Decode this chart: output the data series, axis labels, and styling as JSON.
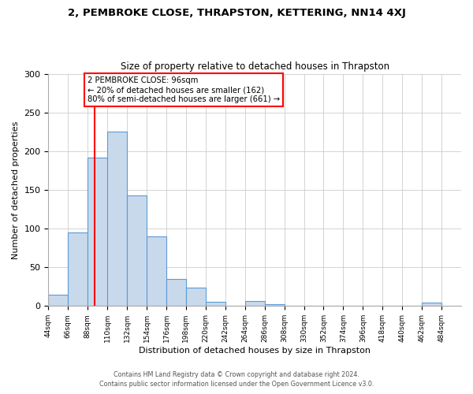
{
  "title": "2, PEMBROKE CLOSE, THRAPSTON, KETTERING, NN14 4XJ",
  "subtitle": "Size of property relative to detached houses in Thrapston",
  "xlabel": "Distribution of detached houses by size in Thrapston",
  "ylabel": "Number of detached properties",
  "bin_edges": [
    44,
    66,
    88,
    110,
    132,
    154,
    176,
    198,
    220,
    242,
    264,
    286,
    308,
    330,
    352,
    374,
    396,
    418,
    440,
    462,
    484
  ],
  "bar_heights": [
    15,
    95,
    192,
    225,
    143,
    90,
    35,
    24,
    5,
    0,
    6,
    2,
    0,
    0,
    0,
    0,
    0,
    0,
    0,
    4
  ],
  "bar_facecolor": "#c9d9ec",
  "bar_edgecolor": "#5b9bd5",
  "vline_x": 96,
  "vline_color": "red",
  "annotation_line1": "2 PEMBROKE CLOSE: 96sqm",
  "annotation_line2": "← 20% of detached houses are smaller (162)",
  "annotation_line3": "80% of semi-detached houses are larger (661) →",
  "annotation_box_edgecolor": "red",
  "ylim": [
    0,
    300
  ],
  "yticks": [
    0,
    50,
    100,
    150,
    200,
    250,
    300
  ],
  "tick_labels": [
    "44sqm",
    "66sqm",
    "88sqm",
    "110sqm",
    "132sqm",
    "154sqm",
    "176sqm",
    "198sqm",
    "220sqm",
    "242sqm",
    "264sqm",
    "286sqm",
    "308sqm",
    "330sqm",
    "352sqm",
    "374sqm",
    "396sqm",
    "418sqm",
    "440sqm",
    "462sqm",
    "484sqm"
  ],
  "footer_line1": "Contains HM Land Registry data © Crown copyright and database right 2024.",
  "footer_line2": "Contains public sector information licensed under the Open Government Licence v3.0.",
  "bg_color": "#ffffff",
  "grid_color": "#cccccc"
}
